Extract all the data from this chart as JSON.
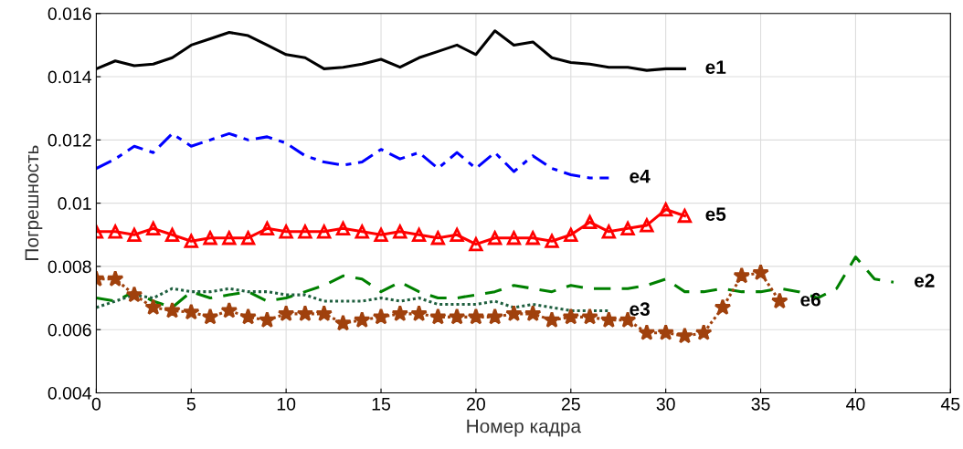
{
  "chart_data": {
    "type": "line",
    "xlabel": "Номер кадра",
    "ylabel": "Погрешность",
    "xlim": [
      0,
      45
    ],
    "xticks": [
      0,
      5,
      10,
      15,
      20,
      25,
      30,
      35,
      40,
      45
    ],
    "ylim": [
      0.004,
      0.016
    ],
    "yticks": [
      0.004,
      0.006,
      0.008,
      0.01,
      0.012,
      0.014,
      0.016
    ],
    "grid": true,
    "series": [
      {
        "name": "e1",
        "color": "#000000",
        "line_style": "solid",
        "marker": "none",
        "x": [
          0,
          1,
          2,
          3,
          4,
          5,
          6,
          7,
          8,
          9,
          10,
          11,
          12,
          13,
          14,
          15,
          16,
          17,
          18,
          19,
          20,
          21,
          22,
          23,
          24,
          25,
          26,
          27,
          28,
          29,
          30,
          31
        ],
        "values": [
          0.01425,
          0.0145,
          0.01435,
          0.0144,
          0.0146,
          0.015,
          0.0152,
          0.0154,
          0.0153,
          0.015,
          0.0147,
          0.0146,
          0.01425,
          0.0143,
          0.0144,
          0.01455,
          0.0143,
          0.0146,
          0.0148,
          0.015,
          0.0147,
          0.01545,
          0.015,
          0.0151,
          0.0146,
          0.01445,
          0.0144,
          0.0143,
          0.0143,
          0.0142,
          0.01425,
          0.01425
        ]
      },
      {
        "name": "e4",
        "color": "#0000ff",
        "line_style": "dashdot",
        "marker": "none",
        "x": [
          0,
          1,
          2,
          3,
          4,
          5,
          6,
          7,
          8,
          9,
          10,
          11,
          12,
          13,
          14,
          15,
          16,
          17,
          18,
          19,
          20,
          21,
          22,
          23,
          24,
          25,
          26,
          27
        ],
        "values": [
          0.0111,
          0.0114,
          0.0118,
          0.0116,
          0.0122,
          0.0118,
          0.012,
          0.0122,
          0.012,
          0.0121,
          0.0119,
          0.0115,
          0.0113,
          0.0112,
          0.0113,
          0.0117,
          0.0114,
          0.0116,
          0.0111,
          0.0116,
          0.0111,
          0.0116,
          0.011,
          0.0115,
          0.0111,
          0.0109,
          0.0108,
          0.0108
        ]
      },
      {
        "name": "e5",
        "color": "#ff0000",
        "line_style": "solid",
        "marker": "triangle",
        "x": [
          0,
          1,
          2,
          3,
          4,
          5,
          6,
          7,
          8,
          9,
          10,
          11,
          12,
          13,
          14,
          15,
          16,
          17,
          18,
          19,
          20,
          21,
          22,
          23,
          24,
          25,
          26,
          27,
          28,
          29,
          30,
          31
        ],
        "values": [
          0.0091,
          0.0091,
          0.009,
          0.0092,
          0.009,
          0.0088,
          0.0089,
          0.0089,
          0.0089,
          0.0092,
          0.0091,
          0.0091,
          0.0091,
          0.0092,
          0.0091,
          0.009,
          0.0091,
          0.009,
          0.0089,
          0.009,
          0.0087,
          0.0089,
          0.0089,
          0.0089,
          0.0088,
          0.009,
          0.0094,
          0.0091,
          0.0092,
          0.0093,
          0.0098,
          0.0096
        ]
      },
      {
        "name": "e2",
        "color": "#008000",
        "line_style": "dashed",
        "marker": "none",
        "x": [
          0,
          1,
          2,
          3,
          4,
          5,
          6,
          7,
          8,
          9,
          10,
          11,
          12,
          13,
          14,
          15,
          16,
          17,
          18,
          19,
          20,
          21,
          22,
          23,
          24,
          25,
          26,
          27,
          28,
          29,
          30,
          31,
          32,
          33,
          34,
          35,
          36,
          37,
          38,
          39,
          40,
          41,
          42
        ],
        "values": [
          0.007,
          0.0069,
          0.0072,
          0.0069,
          0.0067,
          0.0072,
          0.007,
          0.0071,
          0.0072,
          0.0069,
          0.007,
          0.0072,
          0.0074,
          0.0077,
          0.0076,
          0.0072,
          0.0075,
          0.0072,
          0.007,
          0.007,
          0.0071,
          0.0072,
          0.0074,
          0.0073,
          0.0072,
          0.0074,
          0.0073,
          0.0073,
          0.0073,
          0.0074,
          0.0076,
          0.0072,
          0.0072,
          0.0073,
          0.0072,
          0.0072,
          0.0073,
          0.0072,
          0.007,
          0.0073,
          0.0083,
          0.0076,
          0.0075
        ]
      },
      {
        "name": "e3",
        "color": "#1f5f3f",
        "line_style": "dotted",
        "marker": "none",
        "x": [
          0,
          1,
          2,
          3,
          4,
          5,
          6,
          7,
          8,
          9,
          10,
          11,
          12,
          13,
          14,
          15,
          16,
          17,
          18,
          19,
          20,
          21,
          22,
          23,
          24,
          25,
          26,
          27
        ],
        "values": [
          0.0067,
          0.0069,
          0.0071,
          0.007,
          0.0073,
          0.0072,
          0.0072,
          0.0073,
          0.0072,
          0.0072,
          0.0071,
          0.0071,
          0.0069,
          0.0069,
          0.0069,
          0.007,
          0.0069,
          0.007,
          0.0068,
          0.0068,
          0.0068,
          0.0069,
          0.0067,
          0.0068,
          0.0067,
          0.0066,
          0.0066,
          0.0066
        ]
      },
      {
        "name": "e6",
        "color": "#a0410d",
        "line_style": "dotted",
        "marker": "star",
        "x": [
          0,
          1,
          2,
          3,
          4,
          5,
          6,
          7,
          8,
          9,
          10,
          11,
          12,
          13,
          14,
          15,
          16,
          17,
          18,
          19,
          20,
          21,
          22,
          23,
          24,
          25,
          26,
          27,
          28,
          29,
          30,
          31,
          32,
          33,
          34,
          35,
          36
        ],
        "values": [
          0.0076,
          0.0076,
          0.0071,
          0.0067,
          0.0066,
          0.00655,
          0.0064,
          0.0066,
          0.0064,
          0.0063,
          0.0065,
          0.0065,
          0.0065,
          0.0062,
          0.0063,
          0.0064,
          0.0065,
          0.0065,
          0.0064,
          0.0064,
          0.0064,
          0.0064,
          0.0065,
          0.0065,
          0.0063,
          0.0064,
          0.0064,
          0.0063,
          0.0063,
          0.0059,
          0.0059,
          0.0058,
          0.0059,
          0.0067,
          0.0077,
          0.0078,
          0.0069
        ]
      }
    ]
  }
}
